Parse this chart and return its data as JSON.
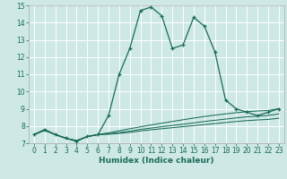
{
  "xlabel": "Humidex (Indice chaleur)",
  "bg_color": "#cde8e5",
  "grid_color": "#ffffff",
  "line_color": "#1a6b5a",
  "xlim": [
    -0.5,
    23.5
  ],
  "ylim": [
    7,
    15
  ],
  "yticks": [
    7,
    8,
    9,
    10,
    11,
    12,
    13,
    14,
    15
  ],
  "xticks": [
    0,
    1,
    2,
    3,
    4,
    5,
    6,
    7,
    8,
    9,
    10,
    11,
    12,
    13,
    14,
    15,
    16,
    17,
    18,
    19,
    20,
    21,
    22,
    23
  ],
  "series": [
    {
      "x": [
        0,
        1,
        2,
        3,
        4,
        5,
        6,
        7,
        8,
        9,
        10,
        11,
        12,
        13,
        14,
        15,
        16,
        17,
        18,
        19,
        20,
        21,
        22,
        23
      ],
      "y": [
        7.5,
        7.8,
        7.5,
        7.3,
        7.1,
        7.4,
        7.5,
        8.6,
        11.0,
        12.5,
        14.7,
        14.9,
        14.4,
        12.5,
        12.7,
        14.3,
        13.8,
        12.3,
        9.5,
        9.0,
        8.8,
        8.6,
        8.8,
        9.0
      ],
      "with_markers": true
    },
    {
      "x": [
        0,
        1,
        2,
        3,
        4,
        5,
        6,
        7,
        8,
        9,
        10,
        11,
        12,
        13,
        14,
        15,
        16,
        17,
        18,
        19,
        20,
        21,
        22,
        23
      ],
      "y": [
        7.5,
        7.75,
        7.5,
        7.28,
        7.15,
        7.38,
        7.5,
        7.6,
        7.72,
        7.84,
        7.95,
        8.06,
        8.16,
        8.26,
        8.36,
        8.46,
        8.55,
        8.63,
        8.7,
        8.77,
        8.83,
        8.87,
        8.9,
        9.0
      ],
      "with_markers": false
    },
    {
      "x": [
        0,
        1,
        2,
        3,
        4,
        5,
        6,
        7,
        8,
        9,
        10,
        11,
        12,
        13,
        14,
        15,
        16,
        17,
        18,
        19,
        20,
        21,
        22,
        23
      ],
      "y": [
        7.5,
        7.75,
        7.5,
        7.28,
        7.15,
        7.38,
        7.5,
        7.55,
        7.62,
        7.7,
        7.8,
        7.88,
        7.96,
        8.03,
        8.1,
        8.18,
        8.26,
        8.33,
        8.4,
        8.47,
        8.53,
        8.57,
        8.61,
        8.7
      ],
      "with_markers": false
    },
    {
      "x": [
        0,
        1,
        2,
        3,
        4,
        5,
        6,
        7,
        8,
        9,
        10,
        11,
        12,
        13,
        14,
        15,
        16,
        17,
        18,
        19,
        20,
        21,
        22,
        23
      ],
      "y": [
        7.5,
        7.75,
        7.5,
        7.28,
        7.15,
        7.38,
        7.5,
        7.52,
        7.57,
        7.63,
        7.71,
        7.78,
        7.84,
        7.9,
        7.96,
        8.02,
        8.08,
        8.14,
        8.2,
        8.26,
        8.31,
        8.35,
        8.38,
        8.45
      ],
      "with_markers": false
    }
  ]
}
